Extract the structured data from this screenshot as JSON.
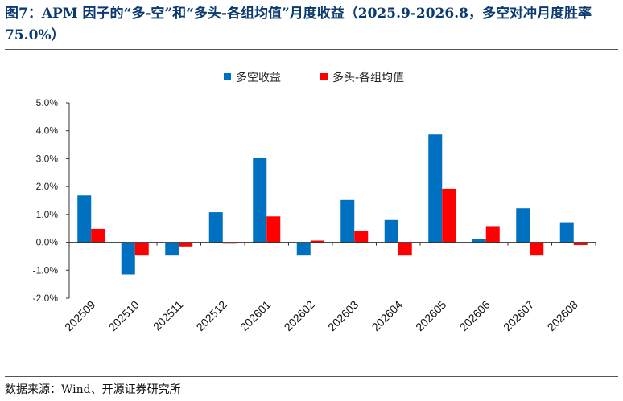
{
  "title": "图7：APM 因子的“多-空”和“多头-各组均值”月度收益（2025.9-2026.8，多空对冲月度胜率 75.0%）",
  "source": "数据来源：Wind、开源证券研究所",
  "colors": {
    "series_long_short": "#0070c0",
    "series_long_mean": "#ff0000",
    "title": "#0b3a6e"
  },
  "chart_data": {
    "type": "bar",
    "categories": [
      "202509",
      "202510",
      "202511",
      "202512",
      "202601",
      "202602",
      "202603",
      "202604",
      "202605",
      "202606",
      "202607",
      "202608"
    ],
    "series": [
      {
        "name": "多空收益",
        "values": [
          1.68,
          -1.15,
          -0.45,
          1.08,
          3.02,
          -0.45,
          1.52,
          0.8,
          3.87,
          0.13,
          1.22,
          0.72
        ]
      },
      {
        "name": "多头-各组均值",
        "values": [
          0.48,
          -0.45,
          -0.15,
          -0.05,
          0.93,
          0.06,
          0.42,
          -0.45,
          1.92,
          0.58,
          -0.45,
          -0.1
        ]
      }
    ],
    "yticks": [
      "5.0%",
      "4.0%",
      "3.0%",
      "2.0%",
      "1.0%",
      "0.0%",
      "-1.0%",
      "-2.0%"
    ],
    "ylim": [
      -2,
      5
    ],
    "legend_position": "top-center",
    "grid": false
  }
}
